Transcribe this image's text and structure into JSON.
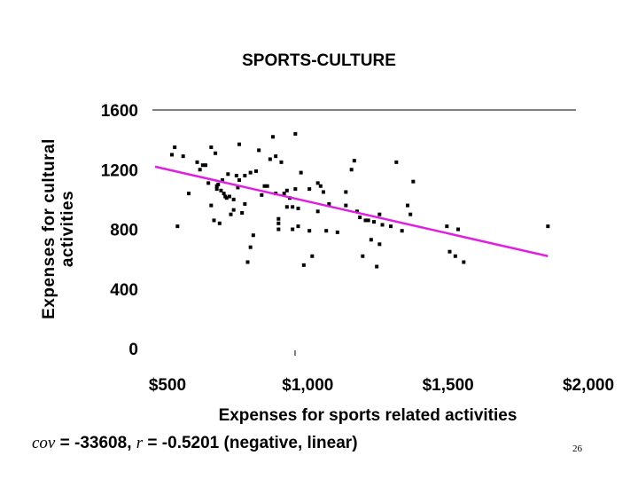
{
  "chart_data": {
    "type": "scatter",
    "title": "SPORTS-CULTURE",
    "xlabel": "Expenses for sports related activities",
    "ylabel_lines": [
      "Expenses for cultural",
      "activities"
    ],
    "xlim": [
      500,
      2000
    ],
    "ylim": [
      0,
      1600
    ],
    "x_ticks": [
      500,
      1000,
      1500,
      2000
    ],
    "x_tick_labels": [
      "$500",
      "$1,000",
      "$1,500",
      "$2,000"
    ],
    "y_ticks": [
      0,
      400,
      800,
      1200,
      1600
    ],
    "y_tick_labels": [
      "0",
      "400",
      "800",
      "1200",
      "1600"
    ],
    "grid": "top border only",
    "marker_color": "#000000",
    "trendline_color": "#e020e0",
    "trendline": {
      "x": [
        500,
        1900
      ],
      "y": [
        1220,
        620
      ]
    },
    "points": [
      [
        560,
        1300
      ],
      [
        570,
        1350
      ],
      [
        580,
        820
      ],
      [
        600,
        1290
      ],
      [
        620,
        1040
      ],
      [
        650,
        1250
      ],
      [
        660,
        1200
      ],
      [
        670,
        1230
      ],
      [
        680,
        1230
      ],
      [
        690,
        1110
      ],
      [
        700,
        1350
      ],
      [
        700,
        960
      ],
      [
        710,
        860
      ],
      [
        715,
        1310
      ],
      [
        720,
        1090
      ],
      [
        720,
        1070
      ],
      [
        725,
        1100
      ],
      [
        730,
        840
      ],
      [
        735,
        1060
      ],
      [
        740,
        1130
      ],
      [
        745,
        1040
      ],
      [
        750,
        1020
      ],
      [
        755,
        1010
      ],
      [
        760,
        1170
      ],
      [
        765,
        1020
      ],
      [
        770,
        900
      ],
      [
        780,
        930
      ],
      [
        780,
        1000
      ],
      [
        790,
        1160
      ],
      [
        795,
        1080
      ],
      [
        800,
        1370
      ],
      [
        800,
        1130
      ],
      [
        810,
        910
      ],
      [
        820,
        1160
      ],
      [
        820,
        970
      ],
      [
        830,
        580
      ],
      [
        840,
        680
      ],
      [
        840,
        1180
      ],
      [
        850,
        760
      ],
      [
        860,
        1190
      ],
      [
        870,
        1330
      ],
      [
        880,
        1030
      ],
      [
        890,
        1090
      ],
      [
        900,
        1090
      ],
      [
        910,
        1270
      ],
      [
        920,
        1420
      ],
      [
        930,
        1290
      ],
      [
        930,
        1040
      ],
      [
        940,
        870
      ],
      [
        940,
        800
      ],
      [
        940,
        840
      ],
      [
        950,
        1250
      ],
      [
        960,
        1040
      ],
      [
        970,
        1060
      ],
      [
        970,
        950
      ],
      [
        980,
        1010
      ],
      [
        990,
        800
      ],
      [
        990,
        950
      ],
      [
        1000,
        1440
      ],
      [
        1000,
        1070
      ],
      [
        1010,
        820
      ],
      [
        1010,
        940
      ],
      [
        1020,
        1180
      ],
      [
        1030,
        560
      ],
      [
        1050,
        790
      ],
      [
        1050,
        1070
      ],
      [
        1060,
        620
      ],
      [
        1080,
        1110
      ],
      [
        1080,
        920
      ],
      [
        1090,
        1090
      ],
      [
        1100,
        1050
      ],
      [
        1110,
        790
      ],
      [
        1120,
        970
      ],
      [
        1150,
        780
      ],
      [
        1180,
        960
      ],
      [
        1180,
        1050
      ],
      [
        1200,
        1200
      ],
      [
        1210,
        1260
      ],
      [
        1220,
        920
      ],
      [
        1230,
        880
      ],
      [
        1240,
        620
      ],
      [
        1250,
        860
      ],
      [
        1260,
        860
      ],
      [
        1270,
        730
      ],
      [
        1280,
        850
      ],
      [
        1290,
        550
      ],
      [
        1300,
        700
      ],
      [
        1300,
        900
      ],
      [
        1310,
        830
      ],
      [
        1340,
        820
      ],
      [
        1360,
        1250
      ],
      [
        1380,
        790
      ],
      [
        1400,
        960
      ],
      [
        1410,
        900
      ],
      [
        1420,
        1120
      ],
      [
        1540,
        820
      ],
      [
        1550,
        650
      ],
      [
        1570,
        620
      ],
      [
        1580,
        800
      ],
      [
        1600,
        580
      ],
      [
        1900,
        820
      ]
    ]
  },
  "caption": {
    "cov_symbol": "cov",
    "cov_text": " = -33608, ",
    "r_symbol": "r",
    "r_text": " = -0.5201 (negative, linear)"
  },
  "slide_number": "26"
}
